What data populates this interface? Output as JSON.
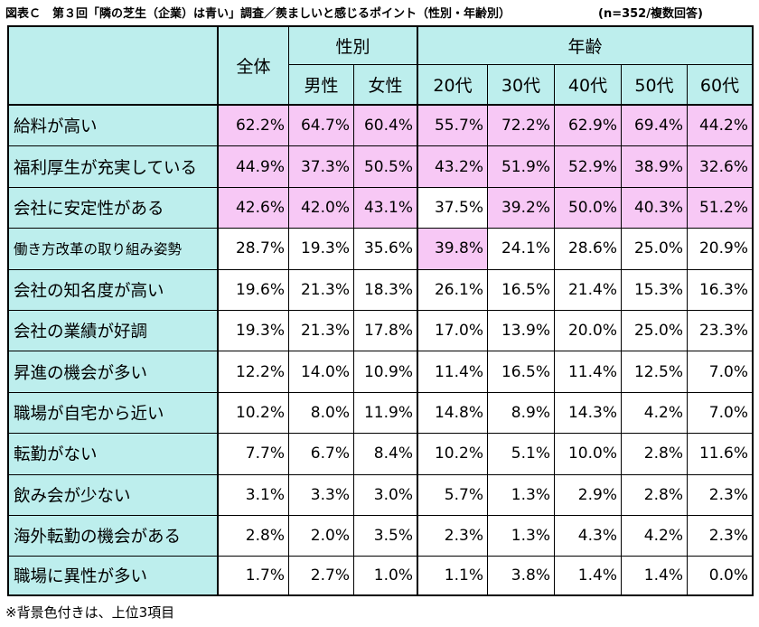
{
  "title": "図表Ｃ　第３回「隣の芝生（企業）は青い」調査／羨ましいと感じるポイント（性別・年齢別）",
  "sample_note": "(n=352/複数回答)",
  "footnote": "※背景色付きは、上位3項目",
  "headers": {
    "overall": "全体",
    "gender_group": "性別",
    "age_group": "年齢",
    "columns": [
      "全体",
      "男性",
      "女性",
      "20代",
      "30代",
      "40代",
      "50代",
      "60代"
    ]
  },
  "colors": {
    "header_bg": "#bdeeed",
    "highlight_bg": "#f7c8f5"
  },
  "chart_data": {
    "type": "table",
    "title": "第３回「隣の芝生（企業）は青い」調査／羨ましいと感じるポイント（性別・年齢別）",
    "columns": [
      "全体",
      "男性",
      "女性",
      "20代",
      "30代",
      "40代",
      "50代",
      "60代"
    ],
    "rows": [
      {
        "label": "給料が高い",
        "values": [
          "62.2%",
          "64.7%",
          "60.4%",
          "55.7%",
          "72.2%",
          "62.9%",
          "69.4%",
          "44.2%"
        ],
        "highlight": [
          true,
          true,
          true,
          true,
          true,
          true,
          true,
          true
        ]
      },
      {
        "label": "福利厚生が充実している",
        "values": [
          "44.9%",
          "37.3%",
          "50.5%",
          "43.2%",
          "51.9%",
          "52.9%",
          "38.9%",
          "32.6%"
        ],
        "highlight": [
          true,
          true,
          true,
          true,
          true,
          true,
          true,
          true
        ]
      },
      {
        "label": "会社に安定性がある",
        "values": [
          "42.6%",
          "42.0%",
          "43.1%",
          "37.5%",
          "39.2%",
          "50.0%",
          "40.3%",
          "51.2%"
        ],
        "highlight": [
          true,
          true,
          true,
          false,
          true,
          true,
          true,
          true
        ]
      },
      {
        "label": "働き方改革の取り組み姿勢",
        "values": [
          "28.7%",
          "19.3%",
          "35.6%",
          "39.8%",
          "24.1%",
          "28.6%",
          "25.0%",
          "20.9%"
        ],
        "highlight": [
          false,
          false,
          false,
          true,
          false,
          false,
          false,
          false
        ]
      },
      {
        "label": "会社の知名度が高い",
        "values": [
          "19.6%",
          "21.3%",
          "18.3%",
          "26.1%",
          "16.5%",
          "21.4%",
          "15.3%",
          "16.3%"
        ],
        "highlight": [
          false,
          false,
          false,
          false,
          false,
          false,
          false,
          false
        ]
      },
      {
        "label": "会社の業績が好調",
        "values": [
          "19.3%",
          "21.3%",
          "17.8%",
          "17.0%",
          "13.9%",
          "20.0%",
          "25.0%",
          "23.3%"
        ],
        "highlight": [
          false,
          false,
          false,
          false,
          false,
          false,
          false,
          false
        ]
      },
      {
        "label": "昇進の機会が多い",
        "values": [
          "12.2%",
          "14.0%",
          "10.9%",
          "11.4%",
          "16.5%",
          "11.4%",
          "12.5%",
          "7.0%"
        ],
        "highlight": [
          false,
          false,
          false,
          false,
          false,
          false,
          false,
          false
        ]
      },
      {
        "label": "職場が自宅から近い",
        "values": [
          "10.2%",
          "8.0%",
          "11.9%",
          "14.8%",
          "8.9%",
          "14.3%",
          "4.2%",
          "7.0%"
        ],
        "highlight": [
          false,
          false,
          false,
          false,
          false,
          false,
          false,
          false
        ]
      },
      {
        "label": "転勤がない",
        "values": [
          "7.7%",
          "6.7%",
          "8.4%",
          "10.2%",
          "5.1%",
          "10.0%",
          "2.8%",
          "11.6%"
        ],
        "highlight": [
          false,
          false,
          false,
          false,
          false,
          false,
          false,
          false
        ]
      },
      {
        "label": "飲み会が少ない",
        "values": [
          "3.1%",
          "3.3%",
          "3.0%",
          "5.7%",
          "1.3%",
          "2.9%",
          "2.8%",
          "2.3%"
        ],
        "highlight": [
          false,
          false,
          false,
          false,
          false,
          false,
          false,
          false
        ]
      },
      {
        "label": "海外転勤の機会がある",
        "values": [
          "2.8%",
          "2.0%",
          "3.5%",
          "2.3%",
          "1.3%",
          "4.3%",
          "4.2%",
          "2.3%"
        ],
        "highlight": [
          false,
          false,
          false,
          false,
          false,
          false,
          false,
          false
        ]
      },
      {
        "label": "職場に異性が多い",
        "values": [
          "1.7%",
          "2.7%",
          "1.0%",
          "1.1%",
          "3.8%",
          "1.4%",
          "1.4%",
          "0.0%"
        ],
        "highlight": [
          false,
          false,
          false,
          false,
          false,
          false,
          false,
          false
        ]
      }
    ]
  }
}
